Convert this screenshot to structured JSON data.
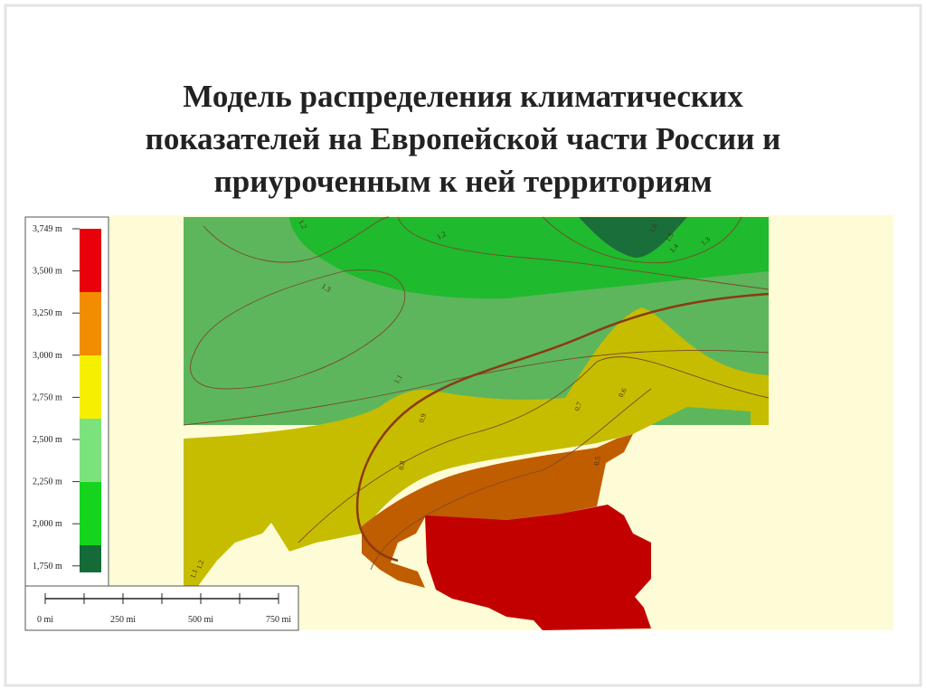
{
  "title_lines": [
    "Модель распределения климатических",
    "показателей на Европейской части России и",
    "приуроченным к ней территориям"
  ],
  "legend": {
    "labels": [
      "3,749 m",
      "3,500 m",
      "3,250 m",
      "3,000 m",
      "2,750 m",
      "2,500 m",
      "2,250 m",
      "2,000 m",
      "1,750 m"
    ]
  },
  "scale": {
    "labels": [
      "0 mi",
      "250 mi",
      "500 mi",
      "750 mi"
    ]
  },
  "contour_labels": [
    "1.2",
    "1.2",
    "1.3",
    "1.1",
    "0.9",
    "0.8",
    "0.7",
    "0.6",
    "0.5",
    "1.6",
    "1.5",
    "1.4",
    "1.3",
    "1.1",
    "1.2"
  ]
}
